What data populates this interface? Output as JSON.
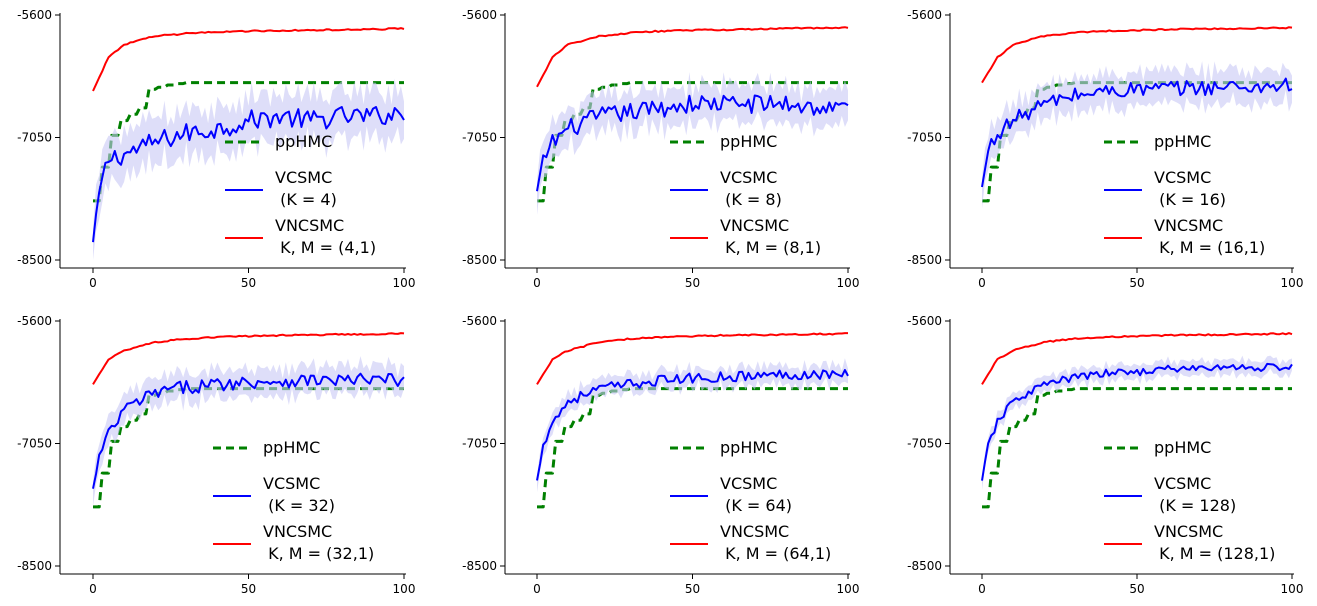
{
  "colors": {
    "pphmc": "#008000",
    "vcsmc": "#0000ff",
    "vcsmc_band": "#c8c8f5",
    "vncsmc": "#ff0000",
    "axis": "#000000"
  },
  "chart_data": [
    {
      "type": "line",
      "panel": 1,
      "xlim": [
        0,
        100
      ],
      "ylim": [
        -8500,
        -5600
      ],
      "xticks": [
        0,
        50,
        100
      ],
      "yticks": [
        -8500,
        -7050,
        -5600
      ],
      "grid": false,
      "legend_position": "center-right",
      "K": 4,
      "series": [
        {
          "name": "ppHMC",
          "key": "pphmc",
          "style": "dashed",
          "x": [
            0,
            3,
            7,
            15,
            18,
            25,
            30,
            100
          ],
          "y": [
            -7800,
            -7400,
            -6900,
            -6700,
            -6480,
            -6420,
            -6400,
            -6400
          ]
        },
        {
          "name": "VCSMC\n(K = 4)",
          "key": "vcsmc",
          "style": "solid",
          "x": [
            0,
            2,
            5,
            10,
            20,
            30,
            40,
            50,
            60,
            70,
            80,
            90,
            100
          ],
          "y": [
            -8300,
            -7700,
            -7300,
            -7250,
            -7100,
            -7000,
            -6950,
            -6850,
            -6800,
            -6850,
            -6800,
            -6800,
            -6750
          ],
          "band": 250,
          "noise": 120
        },
        {
          "name": "VNCSMC\nK, M = (4,1)",
          "key": "vncsmc",
          "style": "solid",
          "x": [
            0,
            5,
            10,
            20,
            30,
            40,
            50,
            60,
            70,
            80,
            90,
            100
          ],
          "y": [
            -6500,
            -6100,
            -5950,
            -5850,
            -5820,
            -5800,
            -5790,
            -5785,
            -5780,
            -5775,
            -5770,
            -5760
          ]
        }
      ],
      "legend": [
        {
          "key": "pphmc",
          "label": "ppHMC"
        },
        {
          "key": "vcsmc",
          "label": "VCSMC",
          "label2": " (K = 4)"
        },
        {
          "key": "vncsmc",
          "label": "VNCSMC",
          "label2": " K, M = (4,1)"
        }
      ]
    },
    {
      "type": "line",
      "panel": 2,
      "xlim": [
        0,
        100
      ],
      "ylim": [
        -8500,
        -5600
      ],
      "xticks": [
        0,
        50,
        100
      ],
      "yticks": [
        -8500,
        -7050,
        -5600
      ],
      "grid": false,
      "legend_position": "center-right",
      "K": 8,
      "series": [
        {
          "name": "ppHMC",
          "key": "pphmc",
          "style": "dashed",
          "x": [
            0,
            3,
            7,
            15,
            18,
            25,
            30,
            100
          ],
          "y": [
            -7800,
            -7400,
            -6900,
            -6700,
            -6480,
            -6420,
            -6400,
            -6400
          ]
        },
        {
          "name": "VCSMC\n(K = 8)",
          "key": "vcsmc",
          "style": "solid",
          "x": [
            0,
            2,
            5,
            10,
            20,
            30,
            40,
            50,
            60,
            70,
            80,
            90,
            100
          ],
          "y": [
            -7700,
            -7300,
            -7100,
            -6950,
            -6800,
            -6750,
            -6700,
            -6650,
            -6650,
            -6650,
            -6650,
            -6700,
            -6700
          ],
          "band": 200,
          "noise": 110
        },
        {
          "name": "VNCSMC\nK, M = (8,1)",
          "key": "vncsmc",
          "style": "solid",
          "x": [
            0,
            5,
            10,
            20,
            30,
            40,
            50,
            60,
            70,
            80,
            90,
            100
          ],
          "y": [
            -6450,
            -6100,
            -5950,
            -5850,
            -5810,
            -5790,
            -5780,
            -5775,
            -5770,
            -5760,
            -5755,
            -5750
          ]
        }
      ],
      "legend": [
        {
          "key": "pphmc",
          "label": "ppHMC"
        },
        {
          "key": "vcsmc",
          "label": "VCSMC",
          "label2": " (K = 8)"
        },
        {
          "key": "vncsmc",
          "label": "VNCSMC",
          "label2": " K, M = (8,1)"
        }
      ]
    },
    {
      "type": "line",
      "panel": 3,
      "xlim": [
        0,
        100
      ],
      "ylim": [
        -8500,
        -5600
      ],
      "xticks": [
        0,
        50,
        100
      ],
      "yticks": [
        -8500,
        -7050,
        -5600
      ],
      "grid": false,
      "legend_position": "center-right",
      "K": 16,
      "series": [
        {
          "name": "ppHMC",
          "key": "pphmc",
          "style": "dashed",
          "x": [
            0,
            3,
            7,
            15,
            18,
            25,
            30,
            100
          ],
          "y": [
            -7800,
            -7400,
            -6900,
            -6700,
            -6480,
            -6420,
            -6400,
            -6400
          ]
        },
        {
          "name": "VCSMC\n(K = 16)",
          "key": "vcsmc",
          "style": "solid",
          "x": [
            0,
            2,
            5,
            10,
            20,
            30,
            40,
            50,
            60,
            70,
            80,
            90,
            100
          ],
          "y": [
            -7650,
            -7200,
            -7000,
            -6850,
            -6650,
            -6550,
            -6500,
            -6480,
            -6470,
            -6460,
            -6450,
            -6450,
            -6420
          ],
          "band": 180,
          "noise": 90
        },
        {
          "name": "VNCSMC\nK, M = (16,1)",
          "key": "vncsmc",
          "style": "solid",
          "x": [
            0,
            5,
            10,
            20,
            30,
            40,
            50,
            60,
            70,
            80,
            90,
            100
          ],
          "y": [
            -6400,
            -6100,
            -5950,
            -5850,
            -5810,
            -5790,
            -5780,
            -5770,
            -5765,
            -5760,
            -5755,
            -5750
          ]
        }
      ],
      "legend": [
        {
          "key": "pphmc",
          "label": "ppHMC"
        },
        {
          "key": "vcsmc",
          "label": "VCSMC",
          "label2": " (K = 16)"
        },
        {
          "key": "vncsmc",
          "label": "VNCSMC",
          "label2": " K, M = (16,1)"
        }
      ]
    },
    {
      "type": "line",
      "panel": 4,
      "xlim": [
        0,
        100
      ],
      "ylim": [
        -8500,
        -5600
      ],
      "xticks": [
        0,
        50,
        100
      ],
      "yticks": [
        -8500,
        -7050,
        -5600
      ],
      "grid": false,
      "legend_position": "center-right",
      "K": 32,
      "series": [
        {
          "name": "ppHMC",
          "key": "pphmc",
          "style": "dashed",
          "x": [
            0,
            3,
            7,
            15,
            18,
            25,
            30,
            100
          ],
          "y": [
            -7800,
            -7400,
            -6900,
            -6700,
            -6480,
            -6420,
            -6400,
            -6400
          ]
        },
        {
          "name": "VCSMC\n(K = 32)",
          "key": "vcsmc",
          "style": "solid",
          "x": [
            0,
            2,
            5,
            10,
            20,
            30,
            40,
            50,
            60,
            70,
            80,
            90,
            100
          ],
          "y": [
            -7600,
            -7200,
            -6950,
            -6650,
            -6450,
            -6380,
            -6350,
            -6320,
            -6310,
            -6300,
            -6300,
            -6300,
            -6300
          ],
          "band": 150,
          "noise": 80
        },
        {
          "name": "VNCSMC\nK, M = (32,1)",
          "key": "vncsmc",
          "style": "solid",
          "x": [
            0,
            5,
            10,
            20,
            30,
            40,
            50,
            60,
            70,
            80,
            90,
            100
          ],
          "y": [
            -6350,
            -6050,
            -5950,
            -5850,
            -5810,
            -5790,
            -5780,
            -5770,
            -5765,
            -5760,
            -5755,
            -5750
          ]
        }
      ],
      "legend": [
        {
          "key": "pphmc",
          "label": "ppHMC"
        },
        {
          "key": "vcsmc",
          "label": "VCSMC",
          "label2": " (K = 32)"
        },
        {
          "key": "vncsmc",
          "label": "VNCSMC",
          "label2": " K, M = (32,1)"
        }
      ]
    },
    {
      "type": "line",
      "panel": 5,
      "xlim": [
        0,
        100
      ],
      "ylim": [
        -8500,
        -5600
      ],
      "xticks": [
        0,
        50,
        100
      ],
      "yticks": [
        -8500,
        -7050,
        -5600
      ],
      "grid": false,
      "legend_position": "center-right",
      "K": 64,
      "series": [
        {
          "name": "ppHMC",
          "key": "pphmc",
          "style": "dashed",
          "x": [
            0,
            3,
            7,
            15,
            18,
            25,
            30,
            100
          ],
          "y": [
            -7800,
            -7400,
            -6900,
            -6700,
            -6480,
            -6420,
            -6400,
            -6400
          ]
        },
        {
          "name": "VCSMC\n(K = 64)",
          "key": "vcsmc",
          "style": "solid",
          "x": [
            0,
            2,
            5,
            10,
            20,
            30,
            40,
            50,
            60,
            70,
            80,
            90,
            100
          ],
          "y": [
            -7500,
            -7050,
            -6800,
            -6550,
            -6400,
            -6350,
            -6300,
            -6280,
            -6260,
            -6250,
            -6230,
            -6230,
            -6220
          ],
          "band": 100,
          "noise": 60
        },
        {
          "name": "VNCSMC\nK, M = (64,1)",
          "key": "vncsmc",
          "style": "solid",
          "x": [
            0,
            5,
            10,
            20,
            30,
            40,
            50,
            60,
            70,
            80,
            90,
            100
          ],
          "y": [
            -6350,
            -6050,
            -5950,
            -5850,
            -5810,
            -5790,
            -5780,
            -5770,
            -5765,
            -5760,
            -5755,
            -5750
          ]
        }
      ],
      "legend": [
        {
          "key": "pphmc",
          "label": "ppHMC"
        },
        {
          "key": "vcsmc",
          "label": "VCSMC",
          "label2": " (K = 64)"
        },
        {
          "key": "vncsmc",
          "label": "VNCSMC",
          "label2": " K, M = (64,1)"
        }
      ]
    },
    {
      "type": "line",
      "panel": 6,
      "xlim": [
        0,
        100
      ],
      "ylim": [
        -8500,
        -5600
      ],
      "xticks": [
        0,
        50,
        100
      ],
      "yticks": [
        -8500,
        -7050,
        -5600
      ],
      "grid": false,
      "legend_position": "center-right",
      "K": 128,
      "series": [
        {
          "name": "ppHMC",
          "key": "pphmc",
          "style": "dashed",
          "x": [
            0,
            3,
            7,
            15,
            18,
            25,
            30,
            100
          ],
          "y": [
            -7800,
            -7400,
            -6900,
            -6700,
            -6480,
            -6420,
            -6400,
            -6400
          ]
        },
        {
          "name": "VCSMC\n(K = 128)",
          "key": "vcsmc",
          "style": "solid",
          "x": [
            0,
            2,
            5,
            10,
            20,
            30,
            40,
            50,
            60,
            70,
            80,
            90,
            100
          ],
          "y": [
            -7500,
            -7050,
            -6800,
            -6550,
            -6350,
            -6270,
            -6220,
            -6200,
            -6170,
            -6160,
            -6150,
            -6150,
            -6140
          ],
          "band": 80,
          "noise": 45
        },
        {
          "name": "VNCSMC\nK, M = (128,1)",
          "key": "vncsmc",
          "style": "solid",
          "x": [
            0,
            5,
            10,
            20,
            30,
            40,
            50,
            60,
            70,
            80,
            90,
            100
          ],
          "y": [
            -6350,
            -6050,
            -5950,
            -5850,
            -5810,
            -5790,
            -5780,
            -5770,
            -5765,
            -5760,
            -5755,
            -5750
          ]
        }
      ],
      "legend": [
        {
          "key": "pphmc",
          "label": "ppHMC"
        },
        {
          "key": "vcsmc",
          "label": "VCSMC",
          "label2": " (K = 128)"
        },
        {
          "key": "vncsmc",
          "label": "VNCSMC",
          "label2": " K, M = (128,1)"
        }
      ]
    }
  ]
}
